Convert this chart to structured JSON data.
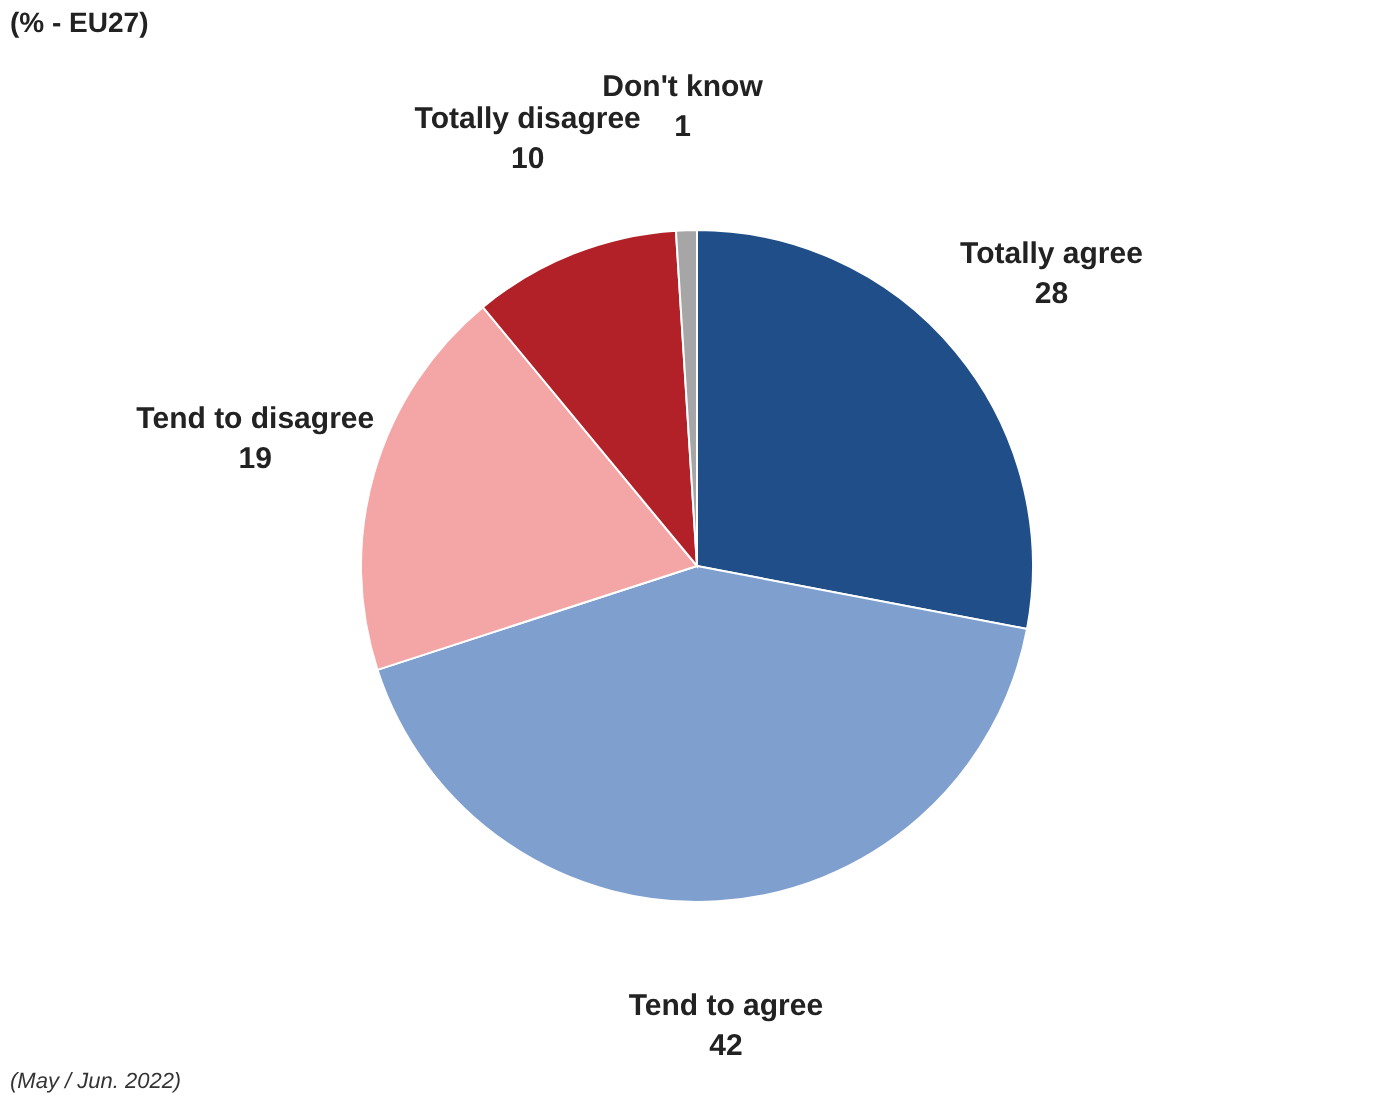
{
  "chart_data": {
    "type": "pie",
    "title": "(% - EU27)",
    "categories": [
      "Totally agree",
      "Tend to agree",
      "Tend to disagree",
      "Totally disagree",
      "Don't know"
    ],
    "values": [
      28,
      42,
      19,
      10,
      1
    ],
    "colors": [
      "#1f4e89",
      "#7f9fcf",
      "#f4a6a6",
      "#b22028",
      "#a6a6a6"
    ],
    "data_labels": true,
    "legend": false,
    "annotations": [
      "(May / Jun. 2022)"
    ]
  }
}
